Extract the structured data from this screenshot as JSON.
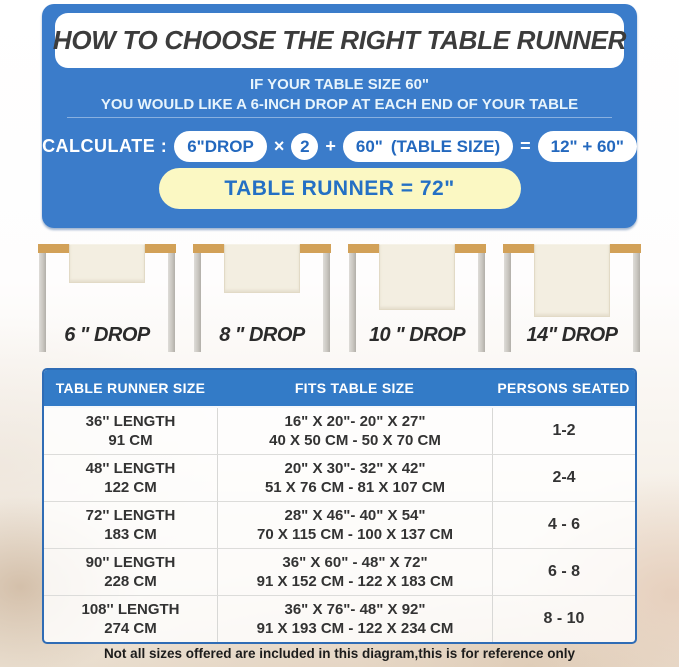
{
  "page": {
    "title": "HOW TO CHOOSE THE RIGHT TABLE RUNNER",
    "subtitle_line1": "IF YOUR TABLE SIZE 60\"",
    "subtitle_line2": "YOU WOULD LIKE A 6-INCH DROP AT EACH END OF YOUR TABLE"
  },
  "calculator": {
    "label": "CALCULATE :",
    "drop_pill": "6\"DROP",
    "times": "×",
    "multiplier": "2",
    "plus": "+",
    "table_size_value": "60\"",
    "table_size_label": "(TABLE SIZE)",
    "equals": "=",
    "sum_pill": "12\" + 60\"",
    "result": "TABLE RUNNER = 72\""
  },
  "diagrams": {
    "items": [
      {
        "label": "6 \" DROP",
        "drop_inches": 6
      },
      {
        "label": "8 \" DROP",
        "drop_inches": 8
      },
      {
        "label": "10 \" DROP",
        "drop_inches": 10
      },
      {
        "label": "14\" DROP",
        "drop_inches": 14
      }
    ]
  },
  "size_table": {
    "headers": [
      "TABLE RUNNER SIZE",
      "FITS TABLE SIZE",
      "PERSONS SEATED"
    ],
    "rows": [
      {
        "runner_in": "36'' LENGTH",
        "runner_cm": "91 CM",
        "fits_in": "16\" X 20\"- 20\" X 27\"",
        "fits_cm": "40 X 50 CM - 50 X 70 CM",
        "persons": "1-2"
      },
      {
        "runner_in": "48'' LENGTH",
        "runner_cm": "122 CM",
        "fits_in": "20\" X 30\"- 32\" X 42\"",
        "fits_cm": "51 X 76 CM - 81 X 107 CM",
        "persons": "2-4"
      },
      {
        "runner_in": "72'' LENGTH",
        "runner_cm": "183 CM",
        "fits_in": "28\" X 46\"- 40\" X 54\"",
        "fits_cm": "70 X 115 CM - 100 X 137 CM",
        "persons": "4 - 6"
      },
      {
        "runner_in": "90'' LENGTH",
        "runner_cm": "228 CM",
        "fits_in": "36\" X 60\" - 48\" X 72\"",
        "fits_cm": "91 X 152 CM - 122 X 183 CM",
        "persons": "6 - 8"
      },
      {
        "runner_in": "108'' LENGTH",
        "runner_cm": "274 CM",
        "fits_in": "36\" X 76\"- 48\" X 92\"",
        "fits_cm": "91 X 193 CM - 122 X 234 CM",
        "persons": "8 - 10"
      }
    ]
  },
  "footer": {
    "note": "Not all sizes offered are included in this diagram,this is for reference only"
  },
  "colors": {
    "panel_blue": "#3b7cca",
    "table_header_blue": "#337bc7",
    "table_border_blue": "#2f6cb5",
    "pill_text_blue": "#2368be",
    "result_yellow": "#fbf8c3",
    "tabletop_tan": "#d2a158",
    "runner_cream": "#f3eee1"
  }
}
